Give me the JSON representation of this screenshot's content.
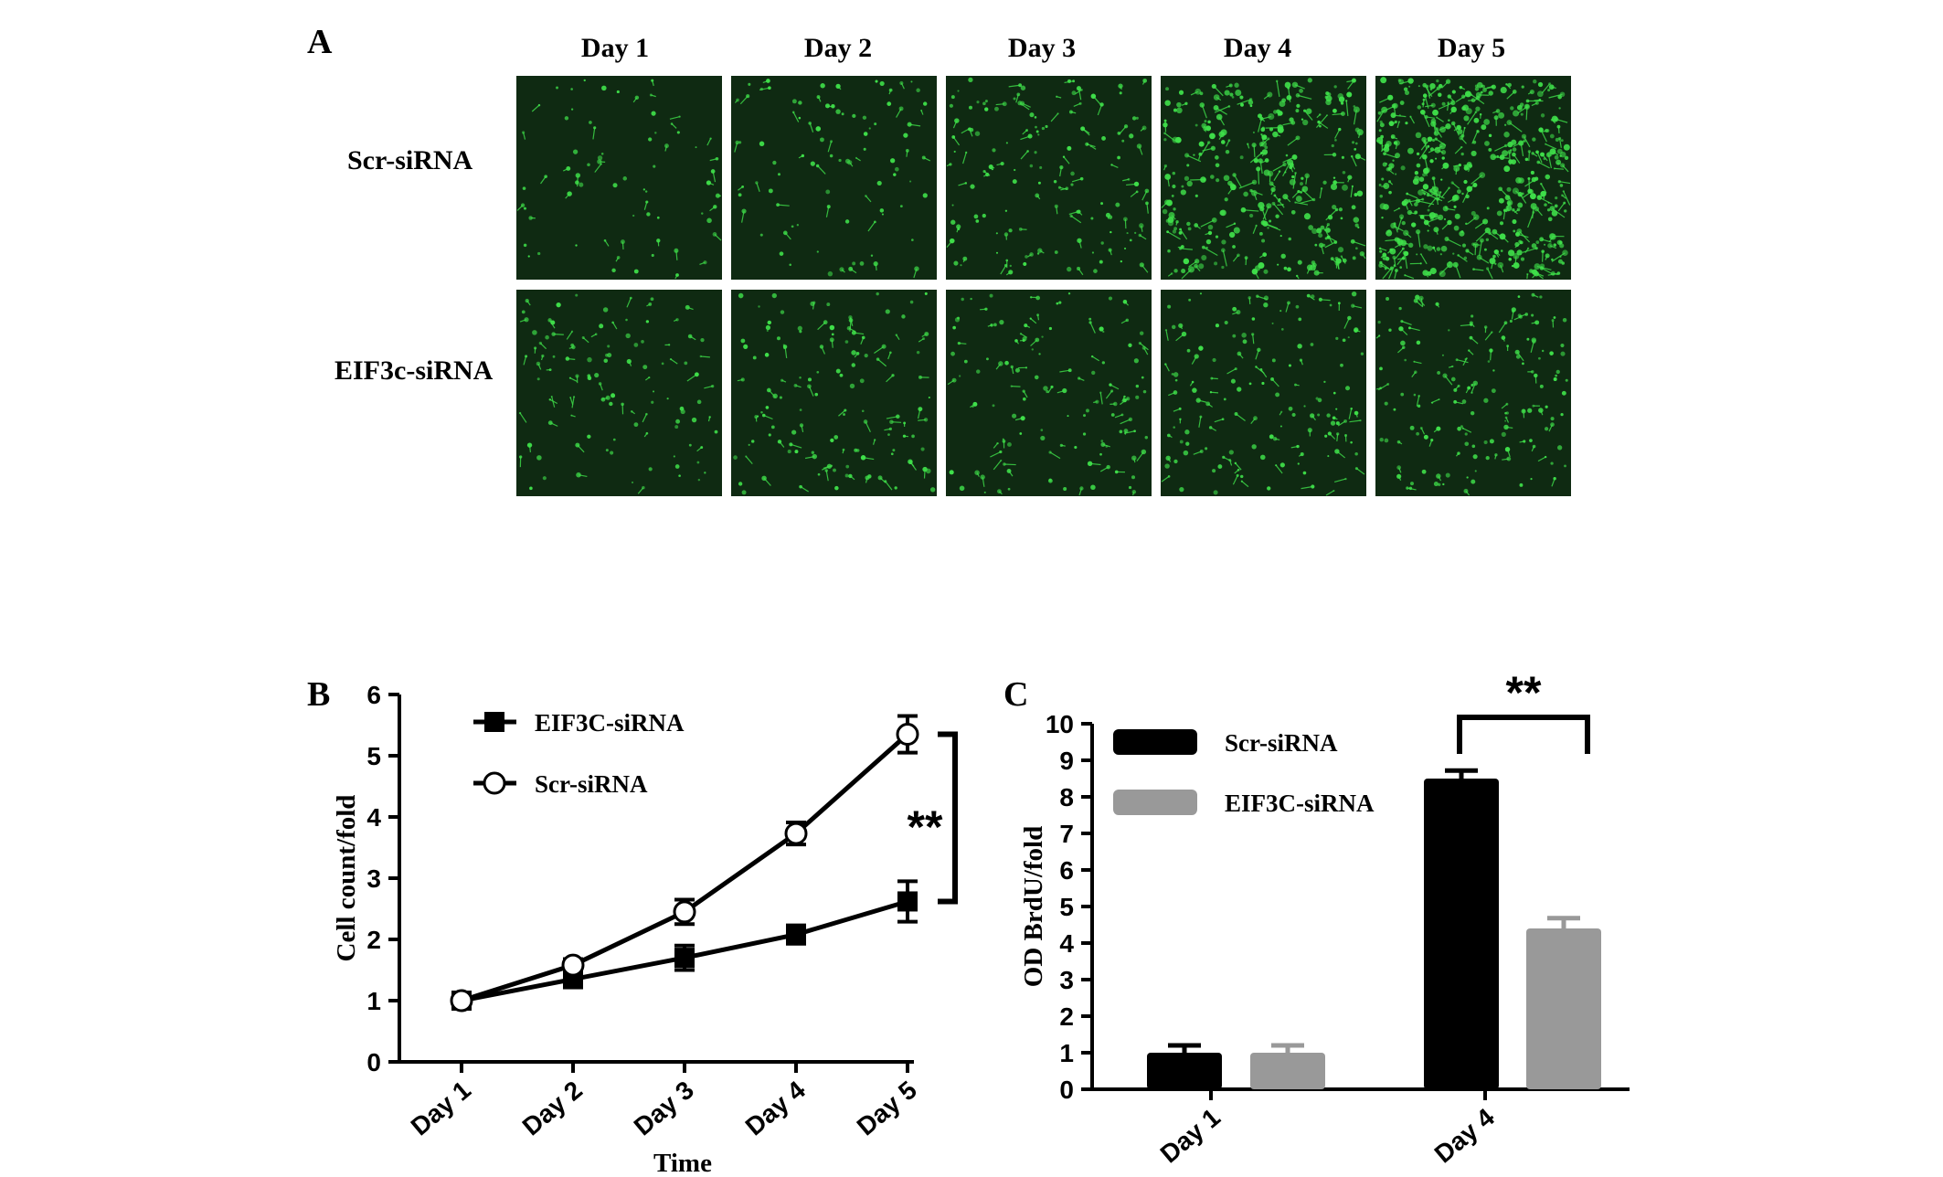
{
  "panels": {
    "a": {
      "letter": "A",
      "columns": [
        "Day 1",
        "Day 2",
        "Day 3",
        "Day 4",
        "Day 5"
      ],
      "rows": [
        "Scr-siRNA",
        "EIF3c-siRNA"
      ],
      "tile_color": "#0f2a12",
      "cell_color": "#3fe04a",
      "cell_density": [
        [
          70,
          90,
          150,
          320,
          480
        ],
        [
          110,
          130,
          130,
          150,
          160
        ]
      ]
    },
    "b": {
      "letter": "B"
    },
    "c": {
      "letter": "C"
    }
  },
  "chart_data": [
    {
      "type": "line",
      "panel": "B",
      "title": "",
      "xlabel": "Time",
      "ylabel": "Cell count/fold",
      "categories": [
        "Day 1",
        "Day 2",
        "Day 3",
        "Day 4",
        "Day 5"
      ],
      "ylim": [
        0,
        6
      ],
      "yticks": [
        "0",
        "1",
        "2",
        "3",
        "4",
        "5",
        "6"
      ],
      "legend_position": "top-left",
      "series": [
        {
          "name": "EIF3C-siRNA",
          "marker": "filled-square",
          "values": [
            1.0,
            1.35,
            1.7,
            2.08,
            2.62
          ],
          "errors": [
            0.05,
            0.12,
            0.2,
            0.15,
            0.33
          ]
        },
        {
          "name": "Scr-siRNA",
          "marker": "open-circle",
          "values": [
            1.0,
            1.58,
            2.45,
            3.73,
            5.35
          ],
          "errors": [
            0.05,
            0.1,
            0.2,
            0.18,
            0.3
          ]
        }
      ],
      "significance": "**"
    },
    {
      "type": "bar",
      "panel": "C",
      "title": "",
      "xlabel": "",
      "ylabel": "OD BrdU/fold",
      "categories": [
        "Day 1",
        "Day 4"
      ],
      "ylim": [
        0,
        10
      ],
      "yticks": [
        "0",
        "1",
        "2",
        "3",
        "4",
        "5",
        "6",
        "7",
        "8",
        "9",
        "10"
      ],
      "legend_position": "top-left",
      "series": [
        {
          "name": "Scr-siRNA",
          "color": "#000000",
          "values": [
            1.0,
            8.5
          ],
          "errors": [
            0.2,
            0.22
          ]
        },
        {
          "name": "EIF3C-siRNA",
          "color": "#999999",
          "values": [
            1.0,
            4.4
          ],
          "errors": [
            0.2,
            0.28
          ]
        }
      ],
      "significance": "**"
    }
  ]
}
